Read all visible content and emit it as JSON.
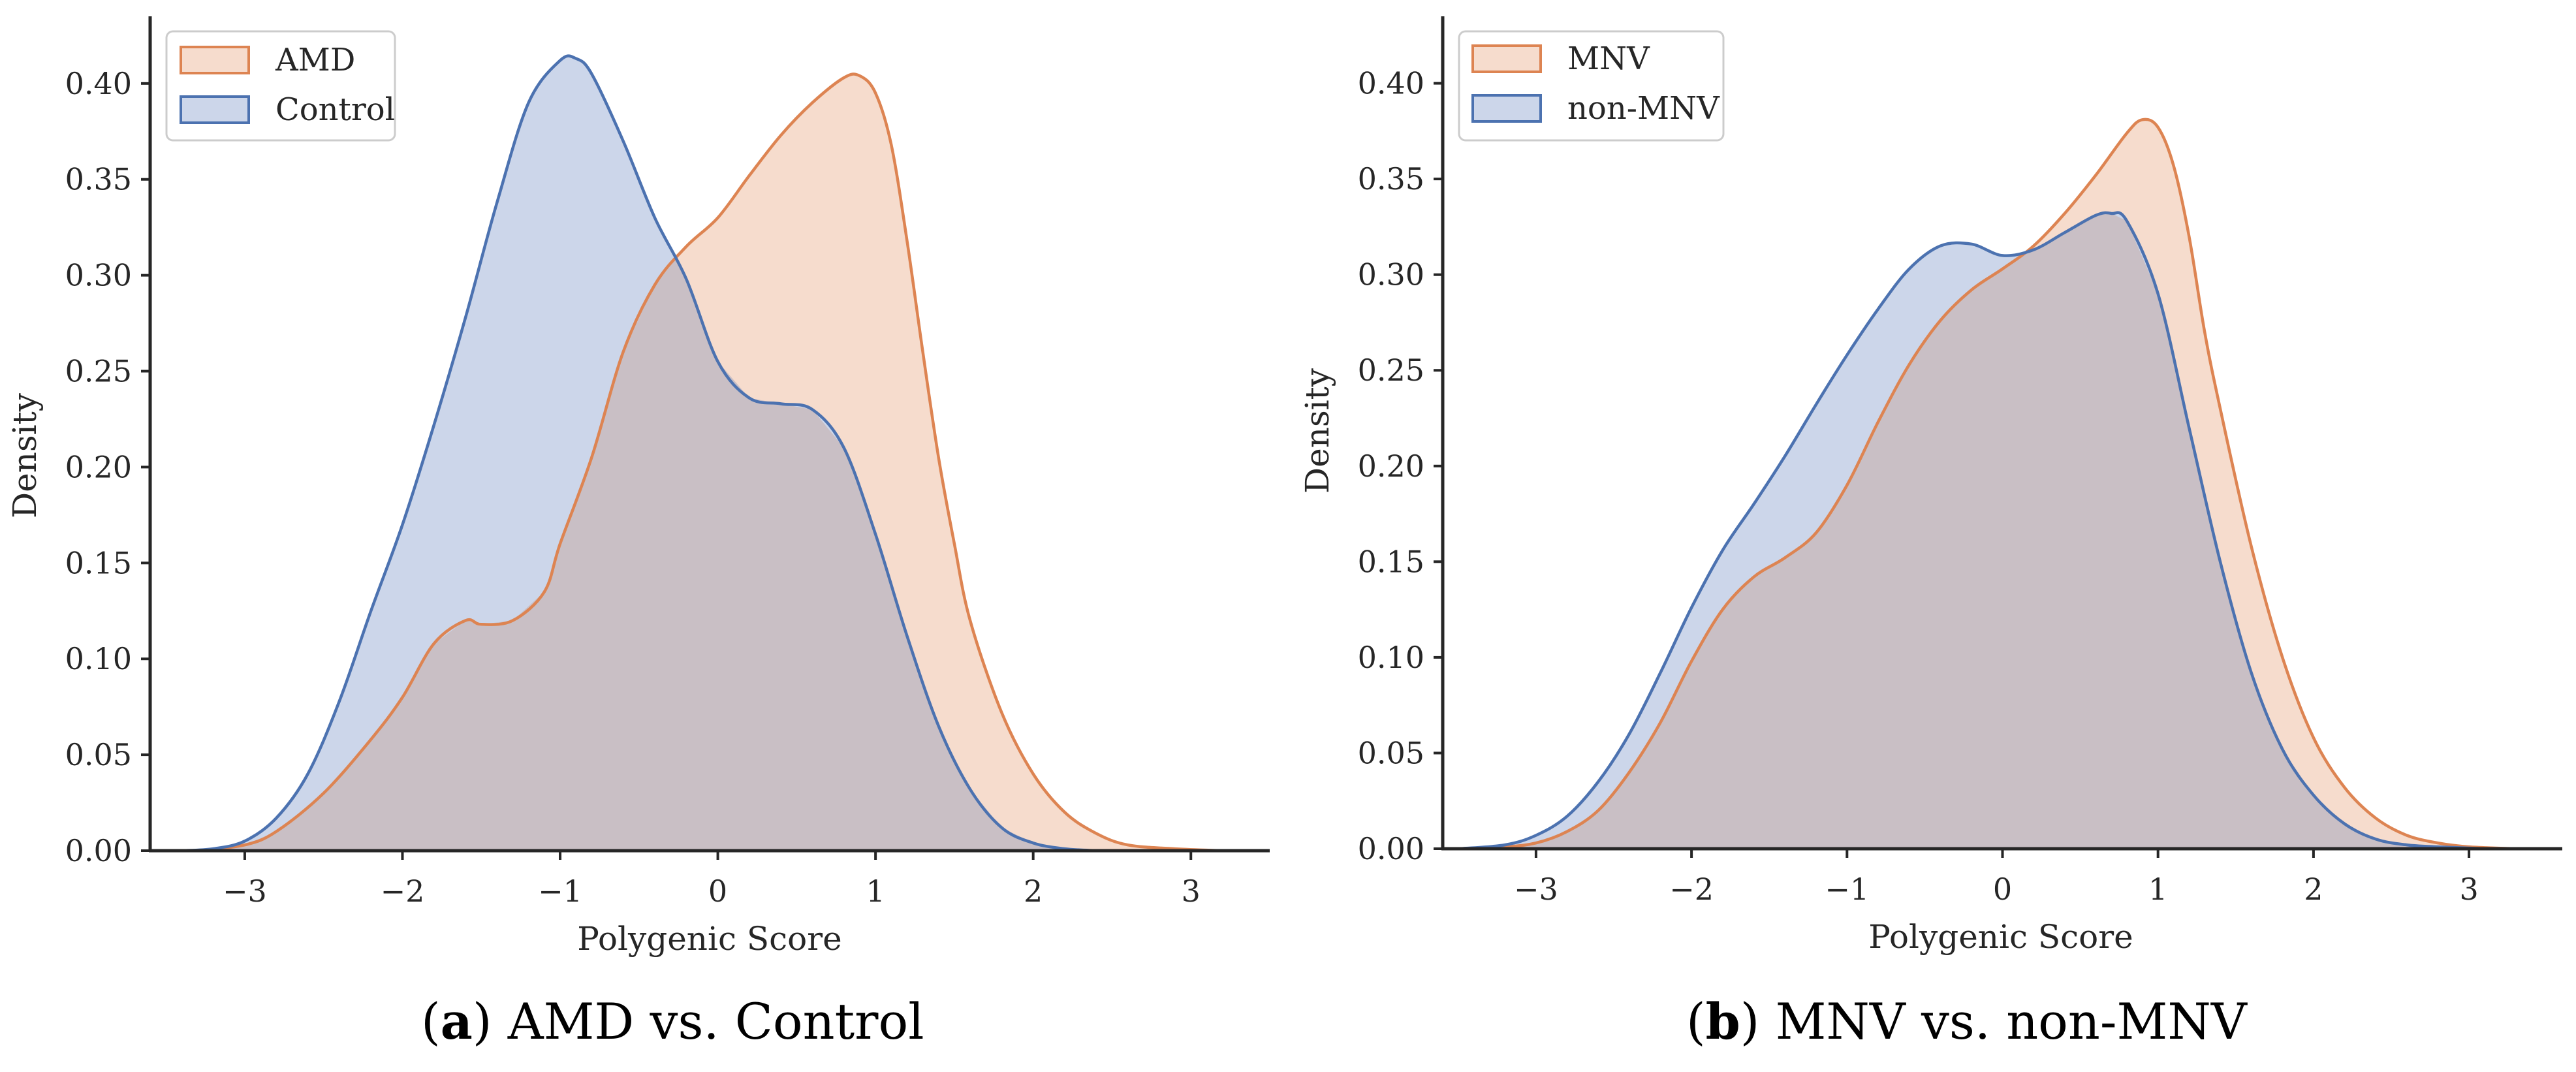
{
  "colors": {
    "orange": "#dd8452",
    "orange_fill": "#f6dccd",
    "blue": "#4c72b0",
    "blue_fill": "#ccd6ea",
    "overlap": "#c9bfc5"
  },
  "captions": [
    {
      "letter": "a",
      "text": "AMD vs. Control"
    },
    {
      "letter": "b",
      "text": "MNV vs. non-MNV"
    }
  ],
  "chart_data": [
    {
      "type": "area",
      "xlabel": "Polygenic Score",
      "ylabel": "Density",
      "xlim": [
        -3.6,
        3.5
      ],
      "ylim": [
        0,
        0.435
      ],
      "xticks": [
        -3,
        -2,
        -1,
        0,
        1,
        2,
        3
      ],
      "xtick_labels": [
        "−3",
        "−2",
        "−1",
        "0",
        "1",
        "2",
        "3"
      ],
      "yticks": [
        0.0,
        0.05,
        0.1,
        0.15,
        0.2,
        0.25,
        0.3,
        0.35,
        0.4
      ],
      "ytick_labels": [
        "0.00",
        "0.05",
        "0.10",
        "0.15",
        "0.20",
        "0.25",
        "0.30",
        "0.35",
        "0.40"
      ],
      "legend_position": "top-left",
      "series": [
        {
          "name": "AMD",
          "color": "orange",
          "x": [
            -3.3,
            -3.0,
            -2.8,
            -2.5,
            -2.2,
            -2.0,
            -1.8,
            -1.6,
            -1.5,
            -1.3,
            -1.1,
            -1.0,
            -0.8,
            -0.6,
            -0.4,
            -0.2,
            0.0,
            0.2,
            0.4,
            0.6,
            0.8,
            0.9,
            1.0,
            1.1,
            1.2,
            1.3,
            1.4,
            1.5,
            1.6,
            1.8,
            2.0,
            2.2,
            2.4,
            2.6,
            2.9,
            3.2
          ],
          "y": [
            0.0,
            0.003,
            0.01,
            0.03,
            0.058,
            0.08,
            0.108,
            0.12,
            0.118,
            0.12,
            0.135,
            0.16,
            0.205,
            0.26,
            0.295,
            0.315,
            0.33,
            0.352,
            0.373,
            0.39,
            0.403,
            0.404,
            0.395,
            0.368,
            0.318,
            0.26,
            0.205,
            0.16,
            0.12,
            0.072,
            0.04,
            0.02,
            0.009,
            0.003,
            0.001,
            0.0
          ]
        },
        {
          "name": "Control",
          "color": "blue",
          "x": [
            -3.4,
            -3.2,
            -3.0,
            -2.8,
            -2.6,
            -2.4,
            -2.2,
            -2.0,
            -1.8,
            -1.6,
            -1.4,
            -1.2,
            -1.0,
            -0.9,
            -0.8,
            -0.6,
            -0.4,
            -0.2,
            0.0,
            0.2,
            0.4,
            0.6,
            0.8,
            1.0,
            1.2,
            1.4,
            1.6,
            1.8,
            2.0,
            2.2,
            2.4
          ],
          "y": [
            0.0,
            0.001,
            0.005,
            0.017,
            0.04,
            0.078,
            0.125,
            0.17,
            0.222,
            0.278,
            0.338,
            0.39,
            0.412,
            0.413,
            0.405,
            0.37,
            0.33,
            0.298,
            0.255,
            0.236,
            0.233,
            0.23,
            0.21,
            0.165,
            0.112,
            0.065,
            0.032,
            0.012,
            0.004,
            0.001,
            0.0
          ]
        }
      ]
    },
    {
      "type": "area",
      "xlabel": "Polygenic Score",
      "ylabel": "Density",
      "xlim": [
        -3.6,
        3.6
      ],
      "ylim": [
        0,
        0.435
      ],
      "xticks": [
        -3,
        -2,
        -1,
        0,
        1,
        2,
        3
      ],
      "xtick_labels": [
        "−3",
        "−2",
        "−1",
        "0",
        "1",
        "2",
        "3"
      ],
      "yticks": [
        0.0,
        0.05,
        0.1,
        0.15,
        0.2,
        0.25,
        0.3,
        0.35,
        0.4
      ],
      "ytick_labels": [
        "0.00",
        "0.05",
        "0.10",
        "0.15",
        "0.20",
        "0.25",
        "0.30",
        "0.35",
        "0.40"
      ],
      "legend_position": "top-left",
      "series": [
        {
          "name": "MNV",
          "color": "orange",
          "x": [
            -3.5,
            -3.2,
            -3.0,
            -2.8,
            -2.6,
            -2.4,
            -2.2,
            -2.0,
            -1.8,
            -1.6,
            -1.4,
            -1.2,
            -1.0,
            -0.8,
            -0.6,
            -0.4,
            -0.2,
            0.0,
            0.2,
            0.4,
            0.6,
            0.8,
            0.9,
            1.0,
            1.1,
            1.2,
            1.3,
            1.4,
            1.6,
            1.8,
            2.0,
            2.2,
            2.4,
            2.6,
            2.8,
            3.0,
            3.3
          ],
          "y": [
            0.0,
            0.001,
            0.003,
            0.009,
            0.02,
            0.04,
            0.066,
            0.098,
            0.125,
            0.142,
            0.152,
            0.165,
            0.19,
            0.223,
            0.253,
            0.276,
            0.292,
            0.303,
            0.315,
            0.332,
            0.352,
            0.374,
            0.381,
            0.377,
            0.357,
            0.32,
            0.27,
            0.23,
            0.158,
            0.1,
            0.058,
            0.032,
            0.016,
            0.007,
            0.003,
            0.001,
            0.0
          ]
        },
        {
          "name": "non-MNV",
          "color": "blue",
          "x": [
            -3.5,
            -3.2,
            -3.0,
            -2.8,
            -2.6,
            -2.4,
            -2.2,
            -2.0,
            -1.8,
            -1.6,
            -1.4,
            -1.2,
            -1.0,
            -0.8,
            -0.6,
            -0.4,
            -0.2,
            0.0,
            0.2,
            0.4,
            0.6,
            0.7,
            0.8,
            1.0,
            1.2,
            1.4,
            1.6,
            1.8,
            2.0,
            2.2,
            2.4,
            2.6,
            2.8,
            3.1
          ],
          "y": [
            0.0,
            0.002,
            0.007,
            0.017,
            0.035,
            0.06,
            0.092,
            0.126,
            0.156,
            0.18,
            0.205,
            0.232,
            0.258,
            0.282,
            0.303,
            0.315,
            0.316,
            0.31,
            0.313,
            0.322,
            0.331,
            0.332,
            0.328,
            0.29,
            0.22,
            0.15,
            0.092,
            0.052,
            0.028,
            0.013,
            0.005,
            0.002,
            0.001,
            0.0
          ]
        }
      ]
    }
  ]
}
